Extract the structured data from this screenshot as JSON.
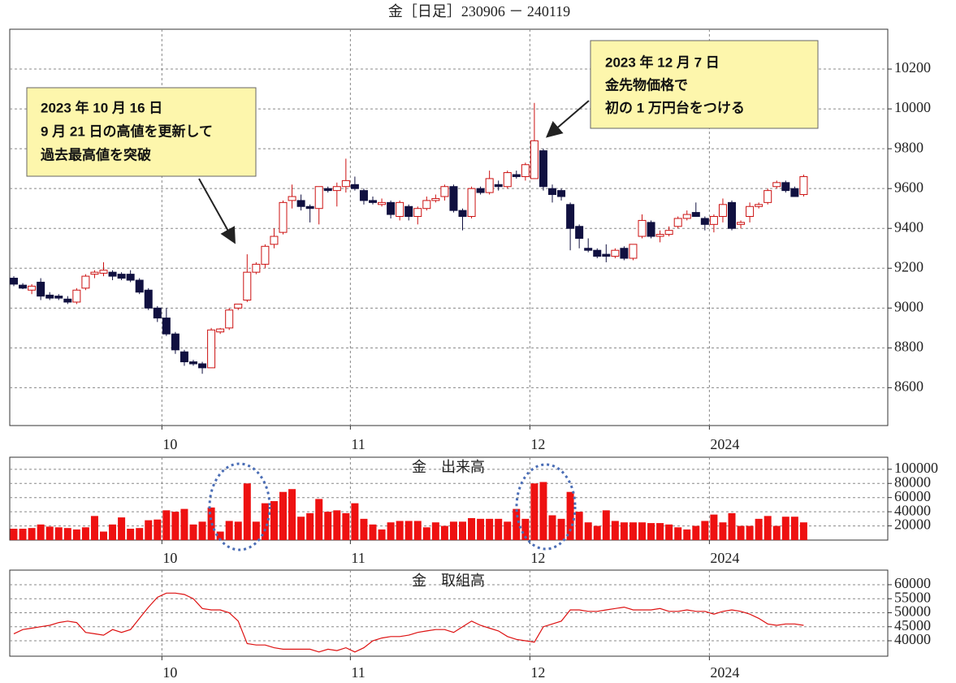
{
  "chart_data": [
    {
      "type": "candlestick",
      "title": "金［日足］230906 － 240119",
      "categories": [
        null,
        null,
        null,
        null,
        null,
        null,
        null,
        null,
        null,
        null,
        null,
        null,
        null,
        null,
        null,
        null,
        null,
        "10",
        null,
        null,
        null,
        null,
        null,
        null,
        null,
        null,
        null,
        null,
        null,
        null,
        null,
        null,
        null,
        null,
        null,
        null,
        null,
        null,
        "11",
        null,
        null,
        null,
        null,
        null,
        null,
        null,
        null,
        null,
        null,
        null,
        null,
        null,
        null,
        null,
        null,
        null,
        null,
        null,
        "12",
        null,
        null,
        null,
        null,
        null,
        null,
        null,
        null,
        null,
        null,
        null,
        null,
        null,
        null,
        null,
        null,
        null,
        null,
        null,
        "2024",
        null,
        null,
        null,
        null,
        null,
        null,
        null,
        null,
        null,
        null
      ],
      "open": [
        9150,
        9115,
        9090,
        9130,
        9065,
        9060,
        9045,
        9030,
        9100,
        9170,
        9175,
        9180,
        9170,
        9170,
        9140,
        9090,
        9000,
        8950,
        8870,
        8780,
        8730,
        8720,
        8700,
        8880,
        8900,
        9000,
        9040,
        9180,
        9220,
        9320,
        9380,
        9540,
        9540,
        9510,
        9500,
        9600,
        9590,
        9610,
        9620,
        9590,
        9540,
        9520,
        9530,
        9460,
        9510,
        9460,
        9500,
        9540,
        9560,
        9610,
        9490,
        9460,
        9600,
        9580,
        9620,
        9610,
        9670,
        9660,
        9650,
        9790,
        9600,
        9590,
        9520,
        9410,
        9300,
        9290,
        9270,
        9260,
        9300,
        9250,
        9360,
        9430,
        9360,
        9370,
        9410,
        9450,
        9480,
        9450,
        9420,
        9460,
        9530,
        9420,
        9460,
        9510,
        9530,
        9610,
        9630,
        9600,
        9570
      ],
      "high": [
        9160,
        9125,
        9120,
        9150,
        9080,
        9070,
        9060,
        9100,
        9170,
        9190,
        9230,
        9190,
        9180,
        9190,
        9150,
        9100,
        9010,
        9000,
        8880,
        8790,
        8740,
        8730,
        8900,
        8900,
        9000,
        9020,
        9270,
        9230,
        9320,
        9400,
        9540,
        9620,
        9570,
        9520,
        9610,
        9610,
        9630,
        9750,
        9660,
        9600,
        9560,
        9550,
        9540,
        9540,
        9520,
        9510,
        9560,
        9570,
        9620,
        9620,
        9500,
        9610,
        9610,
        9690,
        9640,
        9690,
        9690,
        9730,
        10030,
        9800,
        9620,
        9600,
        9530,
        9420,
        9350,
        9300,
        9320,
        9300,
        9310,
        9320,
        9470,
        9440,
        9390,
        9410,
        9460,
        9490,
        9530,
        9460,
        9470,
        9550,
        9540,
        9440,
        9530,
        9530,
        9600,
        9640,
        9640,
        9610,
        9670
      ],
      "low": [
        9110,
        9095,
        9070,
        9040,
        9040,
        9040,
        9020,
        9020,
        9090,
        9150,
        9160,
        9140,
        9140,
        9130,
        9070,
        8990,
        8930,
        8860,
        8770,
        8710,
        8710,
        8670,
        8700,
        8870,
        8890,
        8990,
        9030,
        9170,
        9200,
        9300,
        9370,
        9500,
        9490,
        9430,
        9420,
        9580,
        9510,
        9580,
        9590,
        9520,
        9520,
        9510,
        9450,
        9440,
        9440,
        9420,
        9490,
        9530,
        9540,
        9480,
        9390,
        9450,
        9570,
        9570,
        9590,
        9600,
        9650,
        9640,
        9650,
        9590,
        9530,
        9540,
        9290,
        9300,
        9280,
        9250,
        9230,
        9250,
        9240,
        9240,
        9350,
        9350,
        9330,
        9360,
        9400,
        9440,
        9460,
        9390,
        9380,
        9430,
        9390,
        9400,
        9430,
        9500,
        9520,
        9600,
        9580,
        9560,
        9560
      ],
      "close": [
        9120,
        9100,
        9110,
        9060,
        9050,
        9050,
        9030,
        9090,
        9160,
        9180,
        9190,
        9160,
        9150,
        9140,
        9080,
        9000,
        8950,
        8870,
        8790,
        8730,
        8720,
        8700,
        8890,
        8895,
        8990,
        9020,
        9180,
        9220,
        9310,
        9360,
        9530,
        9560,
        9510,
        9500,
        9610,
        9590,
        9610,
        9640,
        9600,
        9540,
        9530,
        9530,
        9470,
        9530,
        9460,
        9500,
        9540,
        9550,
        9610,
        9490,
        9460,
        9600,
        9580,
        9650,
        9610,
        9680,
        9660,
        9720,
        9840,
        9610,
        9570,
        9560,
        9400,
        9350,
        9290,
        9260,
        9260,
        9290,
        9250,
        9320,
        9440,
        9360,
        9370,
        9390,
        9450,
        9470,
        9460,
        9420,
        9460,
        9520,
        9400,
        9430,
        9510,
        9520,
        9590,
        9630,
        9590,
        9560,
        9660
      ],
      "up_color": "#cc1111",
      "down_color": "#101040",
      "ylim": [
        8410,
        10400
      ],
      "yticks": [
        8600,
        8800,
        9000,
        9200,
        9400,
        9600,
        9800,
        10000,
        10200
      ],
      "grid": true,
      "annotations": [
        {
          "text": [
            "2023 年 10 月 16 日",
            "9 月 21 日の高値を更新して",
            "過去最高値を突破"
          ]
        },
        {
          "text": [
            "2023 年 12 月 7 日",
            "金先物価格で",
            "初の 1 万円台をつける"
          ]
        }
      ]
    },
    {
      "type": "bar",
      "title": "金　出来高",
      "categories": [
        null,
        null,
        null,
        null,
        null,
        null,
        null,
        null,
        null,
        null,
        null,
        null,
        null,
        null,
        null,
        null,
        null,
        "10",
        null,
        null,
        null,
        null,
        null,
        null,
        null,
        null,
        null,
        null,
        null,
        null,
        null,
        null,
        null,
        null,
        null,
        null,
        null,
        null,
        "11",
        null,
        null,
        null,
        null,
        null,
        null,
        null,
        null,
        null,
        null,
        null,
        null,
        null,
        null,
        null,
        null,
        null,
        null,
        null,
        "12",
        null,
        null,
        null,
        null,
        null,
        null,
        null,
        null,
        null,
        null,
        null,
        null,
        null,
        null,
        null,
        null,
        null,
        null,
        null,
        "2024",
        null,
        null,
        null,
        null,
        null,
        null,
        null,
        null,
        null,
        null
      ],
      "values": [
        16000,
        16000,
        17000,
        22000,
        19000,
        18000,
        17000,
        15000,
        18000,
        34000,
        12000,
        22000,
        32000,
        16000,
        17000,
        28000,
        29000,
        42000,
        40000,
        44000,
        22000,
        26000,
        46000,
        12000,
        27000,
        26000,
        80000,
        26000,
        52000,
        55000,
        68000,
        72000,
        33000,
        38000,
        58000,
        40000,
        42000,
        38000,
        52000,
        30000,
        22000,
        15000,
        25000,
        27000,
        27000,
        27000,
        18000,
        25000,
        20000,
        26000,
        26000,
        31000,
        30000,
        30000,
        30000,
        26000,
        44000,
        30000,
        80000,
        82000,
        35000,
        30000,
        68000,
        40000,
        25000,
        20000,
        42000,
        27000,
        25000,
        25000,
        25000,
        24000,
        24000,
        22000,
        18000,
        15000,
        20000,
        27000,
        36000,
        25000,
        38000,
        20000,
        20000,
        30000,
        34000,
        20000,
        33000,
        33000,
        25000
      ],
      "color": "#ee1111",
      "ylim": [
        0,
        117000
      ],
      "yticks": [
        20000,
        40000,
        60000,
        80000,
        100000
      ],
      "grid": true
    },
    {
      "type": "line",
      "title": "金　取組高",
      "categories": [
        null,
        null,
        null,
        null,
        null,
        null,
        null,
        null,
        null,
        null,
        null,
        null,
        null,
        null,
        null,
        null,
        null,
        "10",
        null,
        null,
        null,
        null,
        null,
        null,
        null,
        null,
        null,
        null,
        null,
        null,
        null,
        null,
        null,
        null,
        null,
        null,
        null,
        null,
        "11",
        null,
        null,
        null,
        null,
        null,
        null,
        null,
        null,
        null,
        null,
        null,
        null,
        null,
        null,
        null,
        null,
        null,
        null,
        null,
        "12",
        null,
        null,
        null,
        null,
        null,
        null,
        null,
        null,
        null,
        null,
        null,
        null,
        null,
        null,
        null,
        null,
        null,
        null,
        null,
        "2024",
        null,
        null,
        null,
        null,
        null,
        null,
        null,
        null,
        null,
        null
      ],
      "values": [
        42500,
        44000,
        44500,
        45000,
        45500,
        46500,
        47000,
        46500,
        43000,
        42500,
        42000,
        44000,
        43000,
        44000,
        48000,
        52000,
        55500,
        57000,
        57000,
        56500,
        55000,
        51500,
        51000,
        51000,
        50000,
        47000,
        39000,
        38500,
        38500,
        37500,
        37000,
        37000,
        37000,
        37000,
        36000,
        37000,
        36500,
        37500,
        36000,
        37500,
        40000,
        41000,
        41500,
        41500,
        42000,
        43000,
        43500,
        44000,
        44000,
        43000,
        45000,
        47000,
        45500,
        44500,
        43500,
        41500,
        40500,
        40000,
        39500,
        45000,
        46000,
        47000,
        51000,
        51000,
        50500,
        50500,
        51000,
        51500,
        52000,
        51000,
        51000,
        51000,
        51500,
        50500,
        50500,
        51000,
        50500,
        50500,
        49500,
        50500,
        51000,
        50500,
        49500,
        48000,
        46000,
        45500,
        46000,
        46000,
        45500
      ],
      "color": "#dd1111",
      "ylim": [
        34500,
        65200
      ],
      "yticks": [
        40000,
        45000,
        50000,
        55000,
        60000
      ],
      "grid": true
    }
  ]
}
